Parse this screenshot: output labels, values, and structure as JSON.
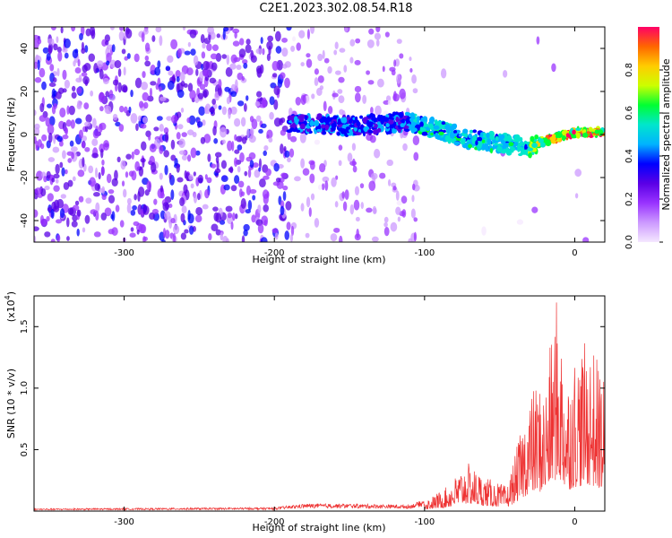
{
  "title": "C2E1.2023.302.08.54.R18",
  "chart_data": [
    {
      "type": "heatmap",
      "xlabel": "Height of straight line (km)",
      "ylabel": "Frequency (Hz)",
      "xlim": [
        -360,
        20
      ],
      "ylim": [
        -50,
        50
      ],
      "x_ticks": [
        -300,
        -200,
        -100,
        0
      ],
      "y_ticks": [
        -40,
        -20,
        0,
        20,
        40
      ],
      "colorbar": {
        "label": "Normalized spectral amplitude",
        "range": [
          0,
          1
        ],
        "ticks": [
          "0.0",
          "0.2",
          "0.4",
          "0.6",
          "0.8"
        ],
        "tick_values": [
          0.0,
          0.2,
          0.4,
          0.6,
          0.8
        ],
        "colors": [
          "#f5e8ff",
          "#cc99ff",
          "#9933ff",
          "#5a00e6",
          "#0000ff",
          "#00b3ff",
          "#00e6cc",
          "#00ff33",
          "#ccff00",
          "#ffcc00",
          "#ff6600",
          "#ff0066"
        ]
      },
      "central_track": [
        {
          "x": -180,
          "y": 5
        },
        {
          "x": -150,
          "y": 4
        },
        {
          "x": -110,
          "y": 6
        },
        {
          "x": -90,
          "y": 2
        },
        {
          "x": -70,
          "y": -2
        },
        {
          "x": -50,
          "y": -4
        },
        {
          "x": -30,
          "y": -6
        },
        {
          "x": -20,
          "y": -3
        },
        {
          "x": 0,
          "y": 1
        },
        {
          "x": 20,
          "y": 1
        }
      ]
    },
    {
      "type": "line",
      "xlabel": "Height of straight line (km)",
      "ylabel": "SNR (10 * v/v)",
      "y_scale_label": "(x10",
      "y_scale_exponent": "4",
      "y_scale_suffix": ")",
      "xlim": [
        -360,
        20
      ],
      "ylim": [
        0,
        1.75
      ],
      "x_ticks": [
        -300,
        -200,
        -100,
        0
      ],
      "y_ticks": [
        0.5,
        1.0,
        1.5
      ],
      "line_color": "#ee3333",
      "envelope": [
        {
          "x": -360,
          "y": 0.02
        },
        {
          "x": -200,
          "y": 0.03
        },
        {
          "x": -180,
          "y": 0.06
        },
        {
          "x": -150,
          "y": 0.06
        },
        {
          "x": -110,
          "y": 0.05
        },
        {
          "x": -95,
          "y": 0.12
        },
        {
          "x": -85,
          "y": 0.2
        },
        {
          "x": -72,
          "y": 0.4
        },
        {
          "x": -60,
          "y": 0.28
        },
        {
          "x": -45,
          "y": 0.2
        },
        {
          "x": -38,
          "y": 0.55
        },
        {
          "x": -30,
          "y": 0.95
        },
        {
          "x": -25,
          "y": 1.05
        },
        {
          "x": -20,
          "y": 1.0
        },
        {
          "x": -12,
          "y": 1.75
        },
        {
          "x": -5,
          "y": 1.1
        },
        {
          "x": 0,
          "y": 1.3
        },
        {
          "x": 10,
          "y": 1.4
        },
        {
          "x": 20,
          "y": 1.1
        }
      ]
    }
  ]
}
